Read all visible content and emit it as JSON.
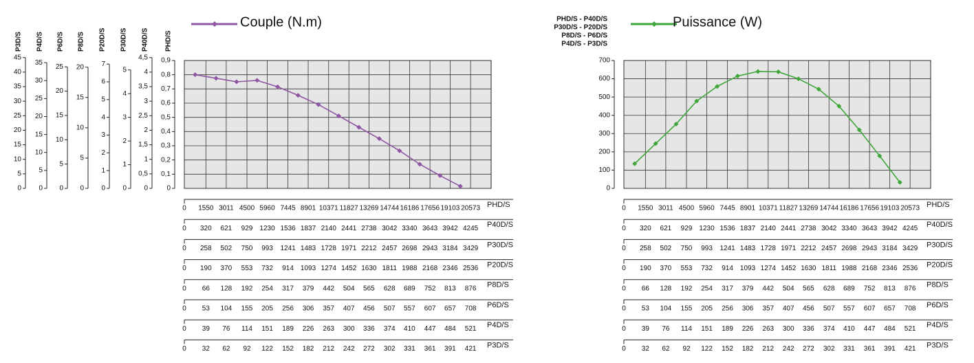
{
  "chart_data": [
    {
      "type": "line",
      "title": "Couple (N.m)",
      "color": "#8e55a3",
      "grid": true,
      "x": [
        775,
        2281,
        3756,
        5230,
        6703,
        8173,
        9636,
        11099,
        12548,
        14007,
        15465,
        16921,
        18380,
        19838
      ],
      "values": [
        0.8,
        0.775,
        0.75,
        0.76,
        0.715,
        0.655,
        0.59,
        0.51,
        0.43,
        0.35,
        0.265,
        0.17,
        0.09,
        0.015
      ],
      "xlim": [
        0,
        22050
      ],
      "x_name": "PHD/S",
      "xticks": [
        0,
        1550,
        3011,
        4500,
        5960,
        7445,
        8901,
        10371,
        11827,
        13269,
        14744,
        16186,
        17656,
        19103,
        20573
      ],
      "ylim": [
        0,
        0.9
      ],
      "y_name": "PHD/S",
      "yticks": [
        0,
        {
          "value": 0.1,
          "label": "0,1"
        },
        {
          "value": 0.2,
          "label": "0,2"
        },
        {
          "value": 0.3,
          "label": "0,3"
        },
        {
          "value": 0.4,
          "label": "0,4"
        },
        {
          "value": 0.5,
          "label": "0,5"
        },
        {
          "value": 0.6,
          "label": "0,6"
        },
        {
          "value": 0.7,
          "label": "0,7"
        },
        {
          "value": 0.8,
          "label": "0,8"
        },
        {
          "value": 0.9,
          "label": "0,9"
        }
      ],
      "extra_y_axes": [
        {
          "name": "P3D/S",
          "ylim": [
            0,
            44
          ],
          "yticks": [
            0,
            5,
            10,
            15,
            20,
            25,
            30,
            35,
            40,
            45
          ]
        },
        {
          "name": "P4D/S",
          "ylim": [
            0,
            35.6
          ],
          "yticks": [
            0,
            5,
            10,
            15,
            20,
            25,
            30,
            35
          ]
        },
        {
          "name": "P6D/S",
          "ylim": [
            0,
            26.3
          ],
          "yticks": [
            0,
            5,
            10,
            15,
            20,
            25
          ]
        },
        {
          "name": "P8D/S",
          "ylim": [
            0,
            21.1
          ],
          "yticks": [
            0,
            5,
            10,
            15,
            20
          ]
        },
        {
          "name": "P20D/S",
          "ylim": [
            0,
            7.2
          ],
          "yticks": [
            0,
            1,
            2,
            3,
            4,
            5,
            6,
            7
          ]
        },
        {
          "name": "P30D/S",
          "ylim": [
            0,
            5.4
          ],
          "yticks": [
            0,
            1,
            2,
            3,
            4,
            5
          ]
        },
        {
          "name": "P40D/S",
          "ylim": [
            0,
            4.4
          ],
          "yticks": [
            0,
            {
              "value": 0.5,
              "label": "0,5"
            },
            1,
            {
              "value": 1.5,
              "label": "1,5"
            },
            2,
            {
              "value": 2.5,
              "label": "2,5"
            },
            3,
            {
              "value": 3.5,
              "label": "3,5"
            },
            4,
            {
              "value": 4.5,
              "label": "4,5"
            }
          ]
        }
      ],
      "extra_x_axes": [
        {
          "name": "P40D/S",
          "ticks": [
            0,
            320,
            621,
            929,
            1230,
            1536,
            1837,
            2140,
            2441,
            2738,
            3042,
            3340,
            3643,
            3942,
            4245
          ]
        },
        {
          "name": "P30D/S",
          "ticks": [
            0,
            258,
            502,
            750,
            993,
            1241,
            1483,
            1728,
            1971,
            2212,
            2457,
            2698,
            2943,
            3184,
            3429
          ]
        },
        {
          "name": "P20D/S",
          "ticks": [
            0,
            190,
            370,
            553,
            732,
            914,
            1093,
            1274,
            1452,
            1630,
            1811,
            1988,
            2168,
            2346,
            2536
          ]
        },
        {
          "name": "P8D/S",
          "ticks": [
            0,
            66,
            128,
            192,
            254,
            317,
            379,
            442,
            504,
            565,
            628,
            689,
            752,
            813,
            876
          ]
        },
        {
          "name": "P6D/S",
          "ticks": [
            0,
            53,
            104,
            155,
            205,
            256,
            306,
            357,
            407,
            456,
            507,
            557,
            607,
            657,
            708
          ]
        },
        {
          "name": "P4D/S",
          "ticks": [
            0,
            39,
            76,
            114,
            151,
            189,
            226,
            263,
            300,
            336,
            374,
            410,
            447,
            484,
            521
          ]
        },
        {
          "name": "P3D/S",
          "ticks": [
            0,
            32,
            62,
            92,
            122,
            152,
            182,
            212,
            242,
            272,
            302,
            331,
            361,
            391,
            421
          ]
        }
      ]
    },
    {
      "type": "line",
      "title": "Puissance (W)",
      "color": "#3ea63a",
      "grid": true,
      "x": [
        775,
        2281,
        3756,
        5230,
        6703,
        8173,
        9636,
        11099,
        12548,
        14007,
        15465,
        16921,
        18380,
        19838
      ],
      "values": [
        135,
        245,
        352,
        478,
        558,
        615,
        640,
        638,
        600,
        543,
        450,
        320,
        178,
        33
      ],
      "xlim": [
        0,
        22050
      ],
      "x_name": "PHD/S",
      "xticks": [
        0,
        1550,
        3011,
        4500,
        5960,
        7445,
        8901,
        10371,
        11827,
        13269,
        14744,
        16186,
        17656,
        19103,
        20573
      ],
      "ylim": [
        0,
        700
      ],
      "yticks": [
        0,
        100,
        200,
        300,
        400,
        500,
        600,
        700
      ],
      "axis_groups": [
        "PHD/S - P40D/S",
        "P30D/S - P20D/S",
        "P8D/S - P6D/S",
        "P4D/S - P3D/S"
      ],
      "extra_y_axes": [],
      "extra_x_axes": [
        {
          "name": "P40D/S",
          "ticks": [
            0,
            320,
            621,
            929,
            1230,
            1536,
            1837,
            2140,
            2441,
            2738,
            3042,
            3340,
            3643,
            3942,
            4245
          ]
        },
        {
          "name": "P30D/S",
          "ticks": [
            0,
            258,
            502,
            750,
            993,
            1241,
            1483,
            1728,
            1971,
            2212,
            2457,
            2698,
            2943,
            3184,
            3429
          ]
        },
        {
          "name": "P20D/S",
          "ticks": [
            0,
            190,
            370,
            553,
            732,
            914,
            1093,
            1274,
            1452,
            1630,
            1811,
            1988,
            2168,
            2346,
            2536
          ]
        },
        {
          "name": "P8D/S",
          "ticks": [
            0,
            66,
            128,
            192,
            254,
            317,
            379,
            442,
            504,
            565,
            628,
            689,
            752,
            813,
            876
          ]
        },
        {
          "name": "P6D/S",
          "ticks": [
            0,
            53,
            104,
            155,
            205,
            256,
            306,
            357,
            407,
            456,
            507,
            557,
            607,
            657,
            708
          ]
        },
        {
          "name": "P4D/S",
          "ticks": [
            0,
            39,
            76,
            114,
            151,
            189,
            226,
            263,
            300,
            336,
            374,
            410,
            447,
            484,
            521
          ]
        },
        {
          "name": "P3D/S",
          "ticks": [
            0,
            32,
            62,
            92,
            122,
            152,
            182,
            212,
            242,
            272,
            302,
            331,
            361,
            391,
            421
          ]
        }
      ]
    }
  ]
}
